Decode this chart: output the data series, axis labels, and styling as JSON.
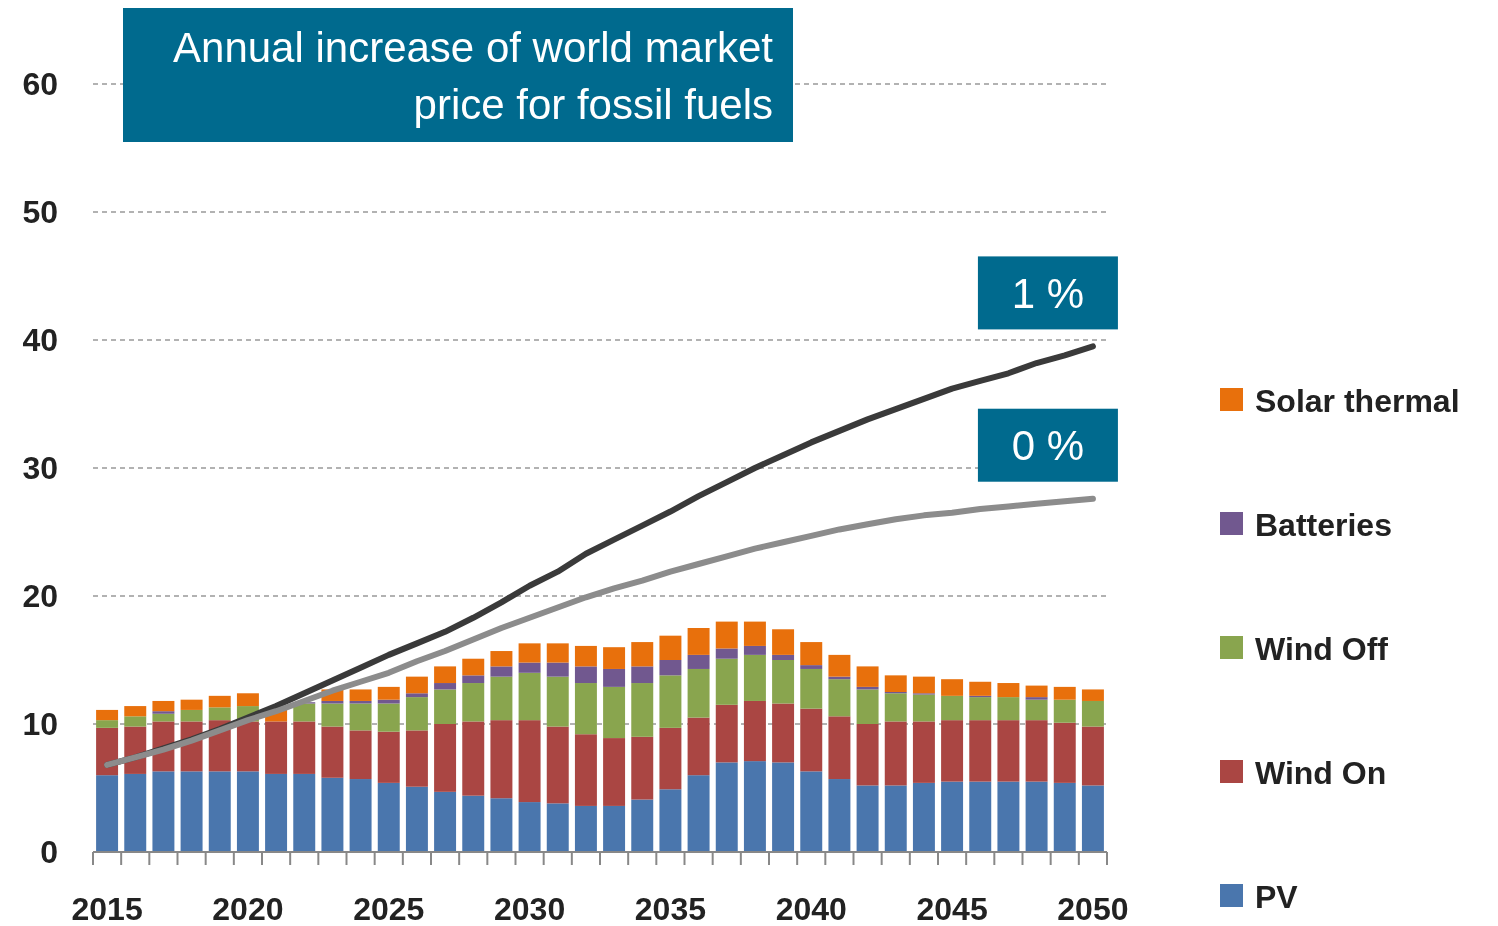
{
  "chart_data": {
    "type": "bar",
    "title": "Annual increase of world market price for fossil fuels",
    "categories": [
      "2015",
      null,
      null,
      null,
      null,
      "2020",
      null,
      null,
      null,
      null,
      "2025",
      null,
      null,
      null,
      null,
      "2030",
      null,
      null,
      null,
      null,
      "2035",
      null,
      null,
      null,
      null,
      "2040",
      null,
      null,
      null,
      null,
      "2045",
      null,
      null,
      null,
      null,
      "2050"
    ],
    "stacked": true,
    "ylim": [
      0,
      60
    ],
    "yticks": [
      0,
      10,
      20,
      30,
      40,
      50,
      60
    ],
    "grid": "y",
    "legend": "right",
    "series": [
      {
        "name": "PV",
        "color": "#4a76ad",
        "values": [
          6.0,
          6.1,
          6.3,
          6.3,
          6.3,
          6.3,
          6.1,
          6.1,
          5.8,
          5.7,
          5.4,
          5.1,
          4.7,
          4.4,
          4.2,
          3.9,
          3.8,
          3.6,
          3.6,
          4.1,
          4.9,
          6.0,
          7.0,
          7.1,
          7.0,
          6.3,
          5.7,
          5.2,
          5.2,
          5.4,
          5.5,
          5.5,
          5.5,
          5.5,
          5.4,
          5.2
        ]
      },
      {
        "name": "Wind On",
        "color": "#aa4643",
        "values": [
          3.7,
          3.7,
          3.9,
          3.9,
          4.0,
          3.9,
          4.1,
          4.1,
          4.0,
          3.8,
          4.0,
          4.4,
          5.3,
          5.8,
          6.1,
          6.4,
          6.0,
          5.6,
          5.3,
          4.9,
          4.8,
          4.5,
          4.5,
          4.7,
          4.6,
          4.9,
          4.9,
          4.8,
          5.0,
          4.8,
          4.8,
          4.8,
          4.8,
          4.8,
          4.7,
          4.6
        ]
      },
      {
        "name": "Wind Off",
        "color": "#89a54e",
        "values": [
          0.6,
          0.8,
          0.6,
          0.9,
          1.0,
          1.2,
          null,
          1.4,
          1.8,
          2.1,
          2.2,
          2.6,
          2.7,
          3.0,
          3.4,
          3.7,
          3.9,
          4.0,
          4.0,
          4.2,
          4.1,
          3.8,
          3.6,
          3.6,
          3.4,
          3.1,
          2.9,
          2.7,
          2.2,
          2.1,
          1.9,
          1.8,
          1.8,
          1.6,
          1.8,
          2.0
        ]
      },
      {
        "name": "Batteries",
        "color": "#71588f",
        "values": [
          0,
          0,
          0.2,
          0,
          0,
          0,
          0,
          0.1,
          0.2,
          0.2,
          0.3,
          0.3,
          0.5,
          0.6,
          0.8,
          0.8,
          1.1,
          1.3,
          1.4,
          1.3,
          1.2,
          1.1,
          0.8,
          0.7,
          0.4,
          0.3,
          0.2,
          0.2,
          0.1,
          0.1,
          0,
          0.1,
          0,
          0.2,
          0,
          0
        ]
      },
      {
        "name": "Solar thermal",
        "color": "#e8700c",
        "values": [
          0.8,
          0.8,
          0.8,
          0.8,
          0.9,
          1.0,
          1.0,
          null,
          0.9,
          0.9,
          1.0,
          1.3,
          1.3,
          1.3,
          1.2,
          1.5,
          1.5,
          1.6,
          1.7,
          1.9,
          1.9,
          2.1,
          2.1,
          1.9,
          2.0,
          1.8,
          1.7,
          1.6,
          1.3,
          1.3,
          1.3,
          1.1,
          1.1,
          0.9,
          1.0,
          0.9
        ]
      },
      {
        "name": "1 %",
        "type": "line",
        "color": "#3a3a3a",
        "values": [
          6.8,
          7.4,
          8.1,
          8.8,
          9.6,
          10.5,
          11.4,
          12.4,
          13.4,
          14.4,
          15.4,
          16.3,
          17.2,
          18.3,
          19.5,
          20.8,
          21.9,
          23.3,
          24.4,
          25.5,
          26.6,
          27.8,
          28.9,
          30.0,
          31.0,
          32.0,
          32.9,
          33.8,
          34.6,
          35.4,
          36.2,
          36.8,
          37.4,
          38.2,
          38.8,
          39.5
        ]
      },
      {
        "name": "0 %",
        "type": "line",
        "color": "#8c8c8c",
        "values": [
          6.8,
          7.4,
          8.0,
          8.7,
          9.5,
          10.3,
          11.0,
          11.8,
          12.6,
          13.3,
          14.0,
          14.9,
          15.7,
          16.6,
          17.5,
          18.3,
          19.1,
          19.9,
          20.6,
          21.2,
          21.9,
          22.5,
          23.1,
          23.7,
          24.2,
          24.7,
          25.2,
          25.6,
          26.0,
          26.3,
          26.5,
          26.8,
          27.0,
          27.2,
          27.4,
          27.6
        ]
      }
    ]
  }
}
